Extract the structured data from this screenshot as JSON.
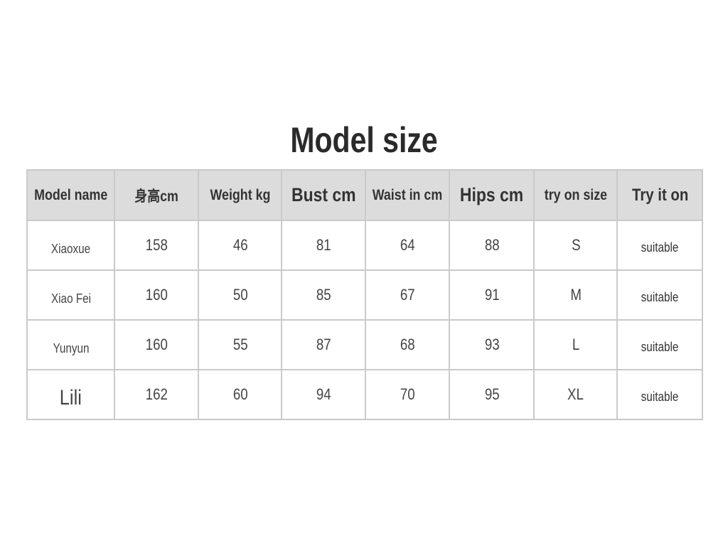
{
  "title": "Model size",
  "table": {
    "headers": [
      "Model name",
      "身高cm",
      "Weight kg",
      "Bust cm",
      "Waist in cm",
      "Hips cm",
      "try on size",
      "Try it on"
    ],
    "rows": [
      [
        "Xiaoxue",
        "158",
        "46",
        "81",
        "64",
        "88",
        "S",
        "suitable"
      ],
      [
        "Xiao Fei",
        "160",
        "50",
        "85",
        "67",
        "91",
        "M",
        "suitable"
      ],
      [
        "Yunyun",
        "160",
        "55",
        "87",
        "68",
        "93",
        "L",
        "suitable"
      ],
      [
        "Lili",
        "162",
        "60",
        "94",
        "70",
        "95",
        "XL",
        "suitable"
      ]
    ]
  },
  "colors": {
    "header_bg": "#dcdcdc",
    "border": "#cacaca"
  }
}
